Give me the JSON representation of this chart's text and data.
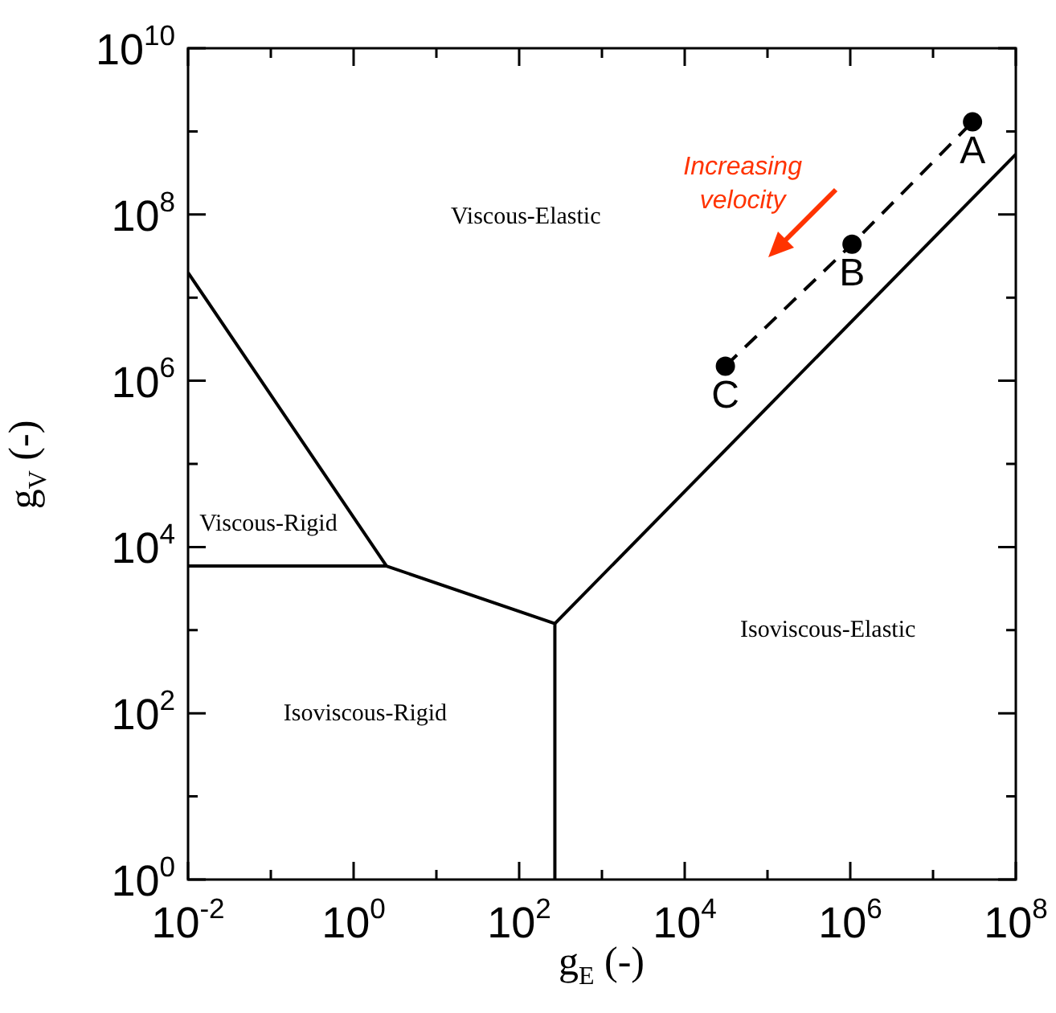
{
  "chart_data": {
    "type": "line",
    "xlabel": "g$_{E}$ (-)",
    "ylabel": "g$_{V}$ (-)",
    "log": "xy",
    "xlim": [
      0.01,
      100000000
    ],
    "ylim": [
      1,
      10000000000
    ],
    "xticks": [
      {
        "value": 0.01,
        "label": "10$^{-2}$"
      },
      {
        "value": 0.1,
        "label": null
      },
      {
        "value": 1,
        "label": "10$^{0}$"
      },
      {
        "value": 10,
        "label": null
      },
      {
        "value": 100,
        "label": "10$^{2}$"
      },
      {
        "value": 1000,
        "label": null
      },
      {
        "value": 10000,
        "label": "10$^{4}$"
      },
      {
        "value": 100000,
        "label": null
      },
      {
        "value": 1000000,
        "label": "10$^{6}$"
      },
      {
        "value": 10000000,
        "label": null
      },
      {
        "value": 100000000,
        "label": "10$^{8}$"
      }
    ],
    "yticks": [
      {
        "value": 1,
        "label": "10$^{0}$"
      },
      {
        "value": 10,
        "label": null
      },
      {
        "value": 100,
        "label": "10$^{2}$"
      },
      {
        "value": 1000,
        "label": null
      },
      {
        "value": 10000,
        "label": "10$^{4}$"
      },
      {
        "value": 100000,
        "label": null
      },
      {
        "value": 1000000,
        "label": "10$^{6}$"
      },
      {
        "value": 10000000,
        "label": null
      },
      {
        "value": 100000000,
        "label": "10$^{8}$"
      },
      {
        "value": 1000000000,
        "label": null
      },
      {
        "value": 10000000000,
        "label": "10$^{10}$"
      }
    ],
    "marker": "none",
    "line_style": "solid",
    "series": [
      {
        "x": [
          0.01,
          2.5,
          270,
          270
        ],
        "values": [
          20000000,
          5900,
          1200,
          1
        ],
        "color": "#000000"
      },
      {
        "x": [
          0.01,
          2.5
        ],
        "values": [
          5900,
          5900
        ],
        "color": "#000000"
      },
      {
        "x": [
          270,
          100000000
        ],
        "values": [
          1200,
          530000000
        ],
        "color": "#000000"
      },
      {
        "x": [
          31000,
          1050000,
          30000000
        ],
        "values": [
          1500000,
          44000000,
          1300000000
        ],
        "color": "#000000",
        "line_style": "dashed",
        "marker": "circle",
        "value_labels": [
          "C",
          "B",
          "A"
        ]
      }
    ],
    "annotations": [
      "Viscous-Elastic",
      "Viscous-Rigid",
      "Isoviscous-Rigid",
      "Isoviscous-Elastic",
      "Increasing velocity"
    ]
  }
}
